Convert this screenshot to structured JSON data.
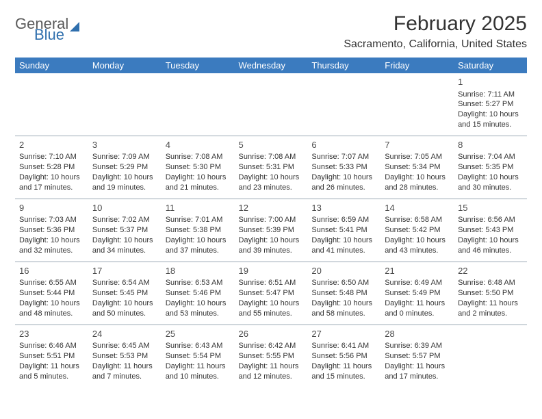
{
  "logo": {
    "line1": "General",
    "line2": "Blue"
  },
  "title": {
    "month": "February 2025",
    "location": "Sacramento, California, United States"
  },
  "header_color": "#3b7bbf",
  "border_color": "#9aa7b3",
  "text_color": "#333333",
  "days": [
    "Sunday",
    "Monday",
    "Tuesday",
    "Wednesday",
    "Thursday",
    "Friday",
    "Saturday"
  ],
  "weeks": [
    [
      null,
      null,
      null,
      null,
      null,
      null,
      {
        "n": "1",
        "sr": "Sunrise: 7:11 AM",
        "ss": "Sunset: 5:27 PM",
        "d1": "Daylight: 10 hours",
        "d2": "and 15 minutes."
      }
    ],
    [
      {
        "n": "2",
        "sr": "Sunrise: 7:10 AM",
        "ss": "Sunset: 5:28 PM",
        "d1": "Daylight: 10 hours",
        "d2": "and 17 minutes."
      },
      {
        "n": "3",
        "sr": "Sunrise: 7:09 AM",
        "ss": "Sunset: 5:29 PM",
        "d1": "Daylight: 10 hours",
        "d2": "and 19 minutes."
      },
      {
        "n": "4",
        "sr": "Sunrise: 7:08 AM",
        "ss": "Sunset: 5:30 PM",
        "d1": "Daylight: 10 hours",
        "d2": "and 21 minutes."
      },
      {
        "n": "5",
        "sr": "Sunrise: 7:08 AM",
        "ss": "Sunset: 5:31 PM",
        "d1": "Daylight: 10 hours",
        "d2": "and 23 minutes."
      },
      {
        "n": "6",
        "sr": "Sunrise: 7:07 AM",
        "ss": "Sunset: 5:33 PM",
        "d1": "Daylight: 10 hours",
        "d2": "and 26 minutes."
      },
      {
        "n": "7",
        "sr": "Sunrise: 7:05 AM",
        "ss": "Sunset: 5:34 PM",
        "d1": "Daylight: 10 hours",
        "d2": "and 28 minutes."
      },
      {
        "n": "8",
        "sr": "Sunrise: 7:04 AM",
        "ss": "Sunset: 5:35 PM",
        "d1": "Daylight: 10 hours",
        "d2": "and 30 minutes."
      }
    ],
    [
      {
        "n": "9",
        "sr": "Sunrise: 7:03 AM",
        "ss": "Sunset: 5:36 PM",
        "d1": "Daylight: 10 hours",
        "d2": "and 32 minutes."
      },
      {
        "n": "10",
        "sr": "Sunrise: 7:02 AM",
        "ss": "Sunset: 5:37 PM",
        "d1": "Daylight: 10 hours",
        "d2": "and 34 minutes."
      },
      {
        "n": "11",
        "sr": "Sunrise: 7:01 AM",
        "ss": "Sunset: 5:38 PM",
        "d1": "Daylight: 10 hours",
        "d2": "and 37 minutes."
      },
      {
        "n": "12",
        "sr": "Sunrise: 7:00 AM",
        "ss": "Sunset: 5:39 PM",
        "d1": "Daylight: 10 hours",
        "d2": "and 39 minutes."
      },
      {
        "n": "13",
        "sr": "Sunrise: 6:59 AM",
        "ss": "Sunset: 5:41 PM",
        "d1": "Daylight: 10 hours",
        "d2": "and 41 minutes."
      },
      {
        "n": "14",
        "sr": "Sunrise: 6:58 AM",
        "ss": "Sunset: 5:42 PM",
        "d1": "Daylight: 10 hours",
        "d2": "and 43 minutes."
      },
      {
        "n": "15",
        "sr": "Sunrise: 6:56 AM",
        "ss": "Sunset: 5:43 PM",
        "d1": "Daylight: 10 hours",
        "d2": "and 46 minutes."
      }
    ],
    [
      {
        "n": "16",
        "sr": "Sunrise: 6:55 AM",
        "ss": "Sunset: 5:44 PM",
        "d1": "Daylight: 10 hours",
        "d2": "and 48 minutes."
      },
      {
        "n": "17",
        "sr": "Sunrise: 6:54 AM",
        "ss": "Sunset: 5:45 PM",
        "d1": "Daylight: 10 hours",
        "d2": "and 50 minutes."
      },
      {
        "n": "18",
        "sr": "Sunrise: 6:53 AM",
        "ss": "Sunset: 5:46 PM",
        "d1": "Daylight: 10 hours",
        "d2": "and 53 minutes."
      },
      {
        "n": "19",
        "sr": "Sunrise: 6:51 AM",
        "ss": "Sunset: 5:47 PM",
        "d1": "Daylight: 10 hours",
        "d2": "and 55 minutes."
      },
      {
        "n": "20",
        "sr": "Sunrise: 6:50 AM",
        "ss": "Sunset: 5:48 PM",
        "d1": "Daylight: 10 hours",
        "d2": "and 58 minutes."
      },
      {
        "n": "21",
        "sr": "Sunrise: 6:49 AM",
        "ss": "Sunset: 5:49 PM",
        "d1": "Daylight: 11 hours",
        "d2": "and 0 minutes."
      },
      {
        "n": "22",
        "sr": "Sunrise: 6:48 AM",
        "ss": "Sunset: 5:50 PM",
        "d1": "Daylight: 11 hours",
        "d2": "and 2 minutes."
      }
    ],
    [
      {
        "n": "23",
        "sr": "Sunrise: 6:46 AM",
        "ss": "Sunset: 5:51 PM",
        "d1": "Daylight: 11 hours",
        "d2": "and 5 minutes."
      },
      {
        "n": "24",
        "sr": "Sunrise: 6:45 AM",
        "ss": "Sunset: 5:53 PM",
        "d1": "Daylight: 11 hours",
        "d2": "and 7 minutes."
      },
      {
        "n": "25",
        "sr": "Sunrise: 6:43 AM",
        "ss": "Sunset: 5:54 PM",
        "d1": "Daylight: 11 hours",
        "d2": "and 10 minutes."
      },
      {
        "n": "26",
        "sr": "Sunrise: 6:42 AM",
        "ss": "Sunset: 5:55 PM",
        "d1": "Daylight: 11 hours",
        "d2": "and 12 minutes."
      },
      {
        "n": "27",
        "sr": "Sunrise: 6:41 AM",
        "ss": "Sunset: 5:56 PM",
        "d1": "Daylight: 11 hours",
        "d2": "and 15 minutes."
      },
      {
        "n": "28",
        "sr": "Sunrise: 6:39 AM",
        "ss": "Sunset: 5:57 PM",
        "d1": "Daylight: 11 hours",
        "d2": "and 17 minutes."
      },
      null
    ]
  ]
}
